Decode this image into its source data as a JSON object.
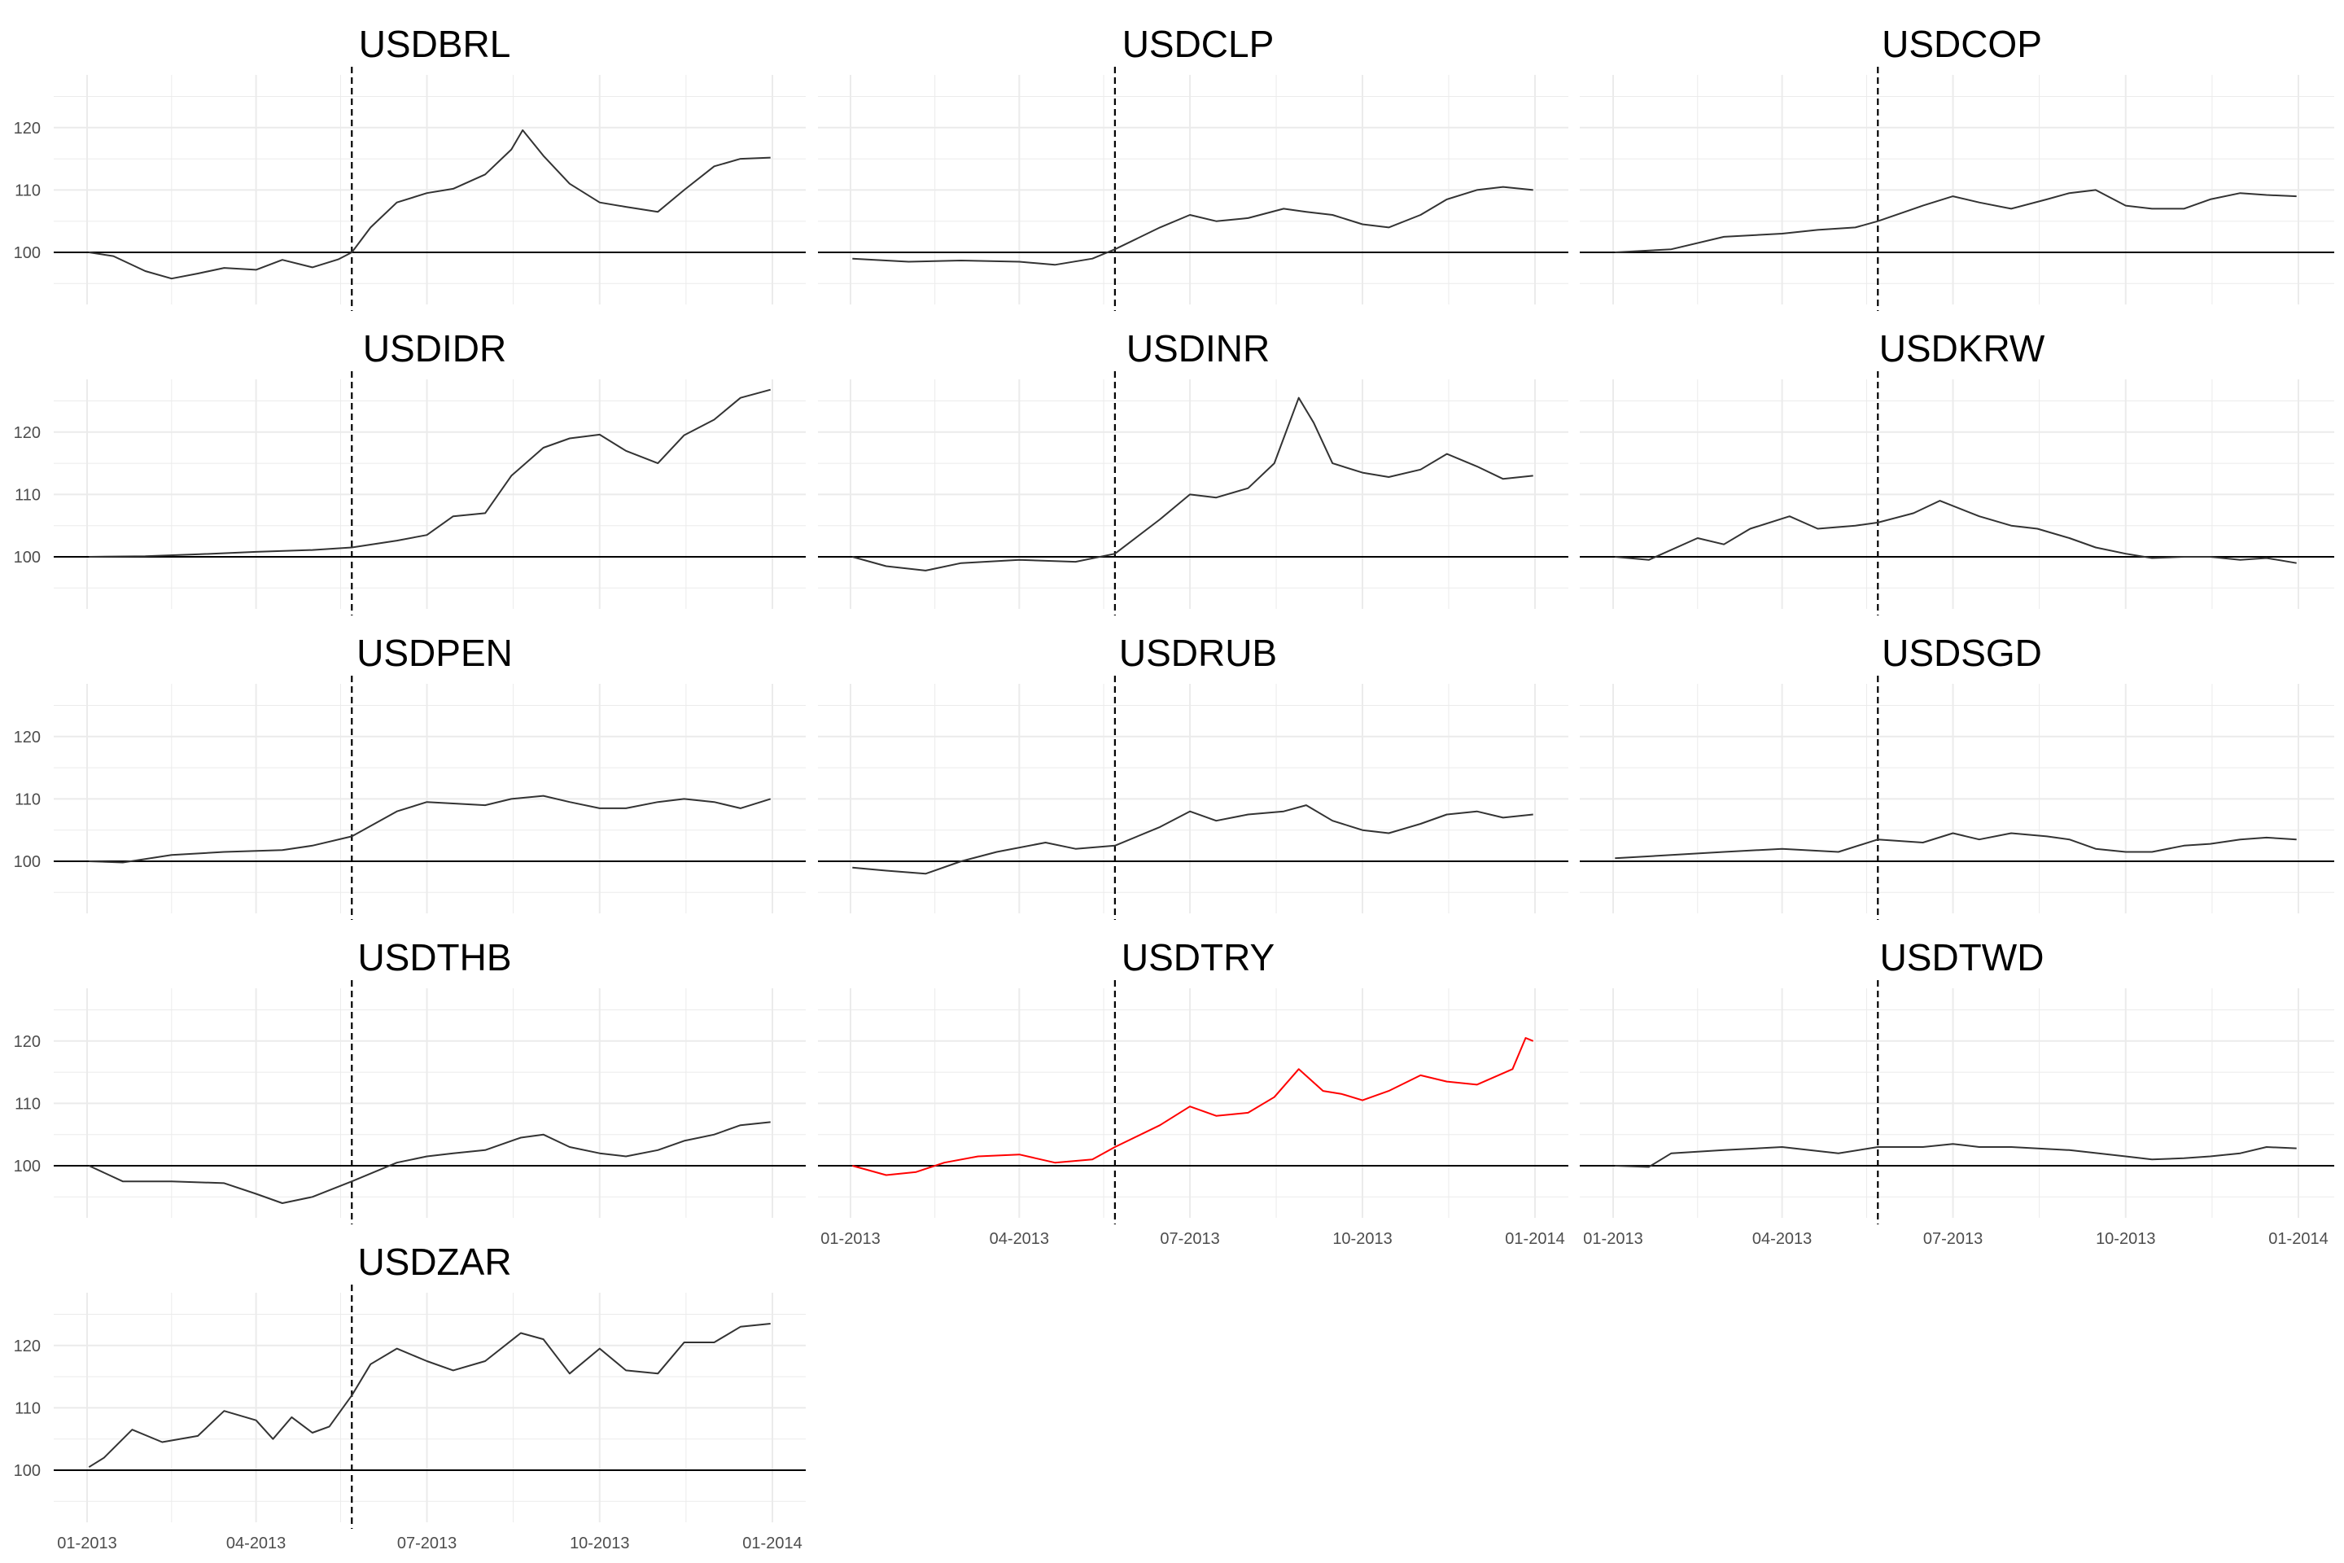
{
  "colors": {
    "default_line": "#333333",
    "highlight_line": "#ff0000",
    "grid": "#ebebeb",
    "baseline": "#000000",
    "text": "#000000",
    "tick_text": "#4d4d4d"
  },
  "chart_data": [
    {
      "type": "line",
      "title": "USDBRL",
      "ylim": [
        92,
        127
      ],
      "yticks": [
        100,
        110,
        120
      ],
      "xlim": [
        "2013-01-01",
        "2014-01-01"
      ],
      "reference_y": 100,
      "reference_date": "2013-05-22",
      "x": [
        "2013-01-02",
        "2013-01-15",
        "2013-02-01",
        "2013-02-15",
        "2013-03-01",
        "2013-03-15",
        "2013-04-01",
        "2013-04-15",
        "2013-05-01",
        "2013-05-15",
        "2013-05-22",
        "2013-06-01",
        "2013-06-15",
        "2013-07-01",
        "2013-07-15",
        "2013-08-01",
        "2013-08-15",
        "2013-08-21",
        "2013-09-01",
        "2013-09-15",
        "2013-10-01",
        "2013-10-15",
        "2013-11-01",
        "2013-11-15",
        "2013-12-01",
        "2013-12-15",
        "2013-12-31"
      ],
      "y": [
        100,
        99.4,
        97.0,
        95.8,
        96.6,
        97.5,
        97.2,
        98.8,
        97.6,
        98.9,
        100.0,
        104.0,
        108.0,
        109.5,
        110.2,
        112.5,
        116.5,
        119.6,
        115.5,
        111.0,
        108.0,
        107.3,
        106.5,
        110.0,
        113.8,
        115.0,
        115.2
      ]
    },
    {
      "type": "line",
      "title": "USDCLP",
      "ylim": [
        92,
        127
      ],
      "yticks": [
        100,
        110,
        120
      ],
      "xlim": [
        "2013-01-01",
        "2014-01-01"
      ],
      "reference_y": 100,
      "reference_date": "2013-05-22",
      "x": [
        "2013-01-02",
        "2013-02-01",
        "2013-03-01",
        "2013-04-01",
        "2013-04-20",
        "2013-05-10",
        "2013-05-22",
        "2013-06-15",
        "2013-07-01",
        "2013-07-15",
        "2013-08-01",
        "2013-08-20",
        "2013-09-01",
        "2013-09-15",
        "2013-10-01",
        "2013-10-15",
        "2013-11-01",
        "2013-11-15",
        "2013-12-01",
        "2013-12-15",
        "2013-12-31"
      ],
      "y": [
        99,
        98.5,
        98.7,
        98.5,
        98.0,
        99.0,
        100.5,
        104.0,
        106.0,
        105.0,
        105.5,
        107.0,
        106.5,
        106.0,
        104.5,
        104.0,
        106.0,
        108.5,
        110.0,
        110.5,
        110.0
      ]
    },
    {
      "type": "line",
      "title": "USDCOP",
      "ylim": [
        92,
        127
      ],
      "yticks": [
        100,
        110,
        120
      ],
      "xlim": [
        "2013-01-01",
        "2014-01-01"
      ],
      "reference_y": 100,
      "reference_date": "2013-05-22",
      "x": [
        "2013-01-02",
        "2013-02-01",
        "2013-03-01",
        "2013-04-01",
        "2013-04-20",
        "2013-05-10",
        "2013-05-22",
        "2013-06-15",
        "2013-07-01",
        "2013-07-15",
        "2013-08-01",
        "2013-08-20",
        "2013-09-01",
        "2013-09-15",
        "2013-10-01",
        "2013-10-15",
        "2013-11-01",
        "2013-11-15",
        "2013-12-01",
        "2013-12-15",
        "2013-12-31"
      ],
      "y": [
        100,
        100.5,
        102.5,
        103.0,
        103.6,
        104.0,
        105.0,
        107.5,
        109.0,
        108.0,
        107.0,
        108.5,
        109.5,
        110.0,
        107.5,
        107.0,
        107.0,
        108.5,
        109.5,
        109.2,
        109.0
      ]
    },
    {
      "type": "line",
      "title": "USDIDR",
      "ylim": [
        92,
        127
      ],
      "yticks": [
        100,
        110,
        120
      ],
      "xlim": [
        "2013-01-01",
        "2014-01-01"
      ],
      "reference_y": 100,
      "reference_date": "2013-05-22",
      "x": [
        "2013-01-02",
        "2013-02-01",
        "2013-03-01",
        "2013-04-01",
        "2013-05-01",
        "2013-05-22",
        "2013-06-15",
        "2013-07-01",
        "2013-07-15",
        "2013-08-01",
        "2013-08-15",
        "2013-09-01",
        "2013-09-15",
        "2013-10-01",
        "2013-10-15",
        "2013-11-01",
        "2013-11-15",
        "2013-12-01",
        "2013-12-15",
        "2013-12-31"
      ],
      "y": [
        100,
        100.1,
        100.4,
        100.8,
        101.1,
        101.5,
        102.6,
        103.5,
        106.5,
        107.0,
        113.0,
        117.5,
        119.0,
        119.6,
        117.0,
        115.0,
        119.5,
        122.0,
        125.5,
        126.8
      ]
    },
    {
      "type": "line",
      "title": "USDINR",
      "ylim": [
        92,
        127
      ],
      "yticks": [
        100,
        110,
        120
      ],
      "xlim": [
        "2013-01-01",
        "2014-01-01"
      ],
      "reference_y": 100,
      "reference_date": "2013-05-22",
      "x": [
        "2013-01-02",
        "2013-01-20",
        "2013-02-10",
        "2013-03-01",
        "2013-04-01",
        "2013-05-01",
        "2013-05-22",
        "2013-06-15",
        "2013-07-01",
        "2013-07-15",
        "2013-08-01",
        "2013-08-15",
        "2013-08-28",
        "2013-09-05",
        "2013-09-15",
        "2013-10-01",
        "2013-10-15",
        "2013-11-01",
        "2013-11-15",
        "2013-12-01",
        "2013-12-15",
        "2013-12-31"
      ],
      "y": [
        100,
        98.5,
        97.8,
        99.0,
        99.5,
        99.2,
        100.5,
        106.0,
        110.0,
        109.5,
        111.0,
        115.0,
        125.5,
        121.5,
        115.0,
        113.5,
        112.8,
        114.0,
        116.5,
        114.5,
        112.5,
        113.0
      ]
    },
    {
      "type": "line",
      "title": "USDKRW",
      "ylim": [
        92,
        127
      ],
      "yticks": [
        100,
        110,
        120
      ],
      "xlim": [
        "2013-01-01",
        "2014-01-01"
      ],
      "reference_y": 100,
      "reference_date": "2013-05-22",
      "x": [
        "2013-01-02",
        "2013-01-20",
        "2013-02-15",
        "2013-03-01",
        "2013-03-15",
        "2013-04-05",
        "2013-04-20",
        "2013-05-10",
        "2013-05-22",
        "2013-06-10",
        "2013-06-24",
        "2013-07-15",
        "2013-08-01",
        "2013-08-15",
        "2013-09-01",
        "2013-09-15",
        "2013-10-01",
        "2013-10-15",
        "2013-11-01",
        "2013-11-15",
        "2013-12-01",
        "2013-12-15",
        "2013-12-31"
      ],
      "y": [
        100,
        99.5,
        103.0,
        102.0,
        104.5,
        106.5,
        104.5,
        105.0,
        105.5,
        107.0,
        109.0,
        106.5,
        105.0,
        104.5,
        103.0,
        101.5,
        100.5,
        99.8,
        100.0,
        100.0,
        99.5,
        99.8,
        99.0
      ]
    },
    {
      "type": "line",
      "title": "USDPEN",
      "ylim": [
        92,
        127
      ],
      "yticks": [
        100,
        110,
        120
      ],
      "xlim": [
        "2013-01-01",
        "2014-01-01"
      ],
      "reference_y": 100,
      "reference_date": "2013-05-22",
      "x": [
        "2013-01-02",
        "2013-01-20",
        "2013-02-15",
        "2013-03-15",
        "2013-04-15",
        "2013-05-01",
        "2013-05-22",
        "2013-06-15",
        "2013-07-01",
        "2013-08-01",
        "2013-08-15",
        "2013-09-01",
        "2013-09-15",
        "2013-10-01",
        "2013-10-15",
        "2013-11-01",
        "2013-11-15",
        "2013-12-01",
        "2013-12-15",
        "2013-12-31"
      ],
      "y": [
        100,
        99.8,
        101.0,
        101.5,
        101.8,
        102.5,
        104.0,
        108.0,
        109.5,
        109.0,
        110.0,
        110.5,
        109.5,
        108.5,
        108.5,
        109.5,
        110.0,
        109.5,
        108.5,
        110.0
      ]
    },
    {
      "type": "line",
      "title": "USDRUB",
      "ylim": [
        92,
        127
      ],
      "yticks": [
        100,
        110,
        120
      ],
      "xlim": [
        "2013-01-01",
        "2014-01-01"
      ],
      "reference_y": 100,
      "reference_date": "2013-05-22",
      "x": [
        "2013-01-02",
        "2013-01-20",
        "2013-02-10",
        "2013-03-01",
        "2013-03-20",
        "2013-04-15",
        "2013-05-01",
        "2013-05-22",
        "2013-06-15",
        "2013-07-01",
        "2013-07-15",
        "2013-08-01",
        "2013-08-20",
        "2013-09-01",
        "2013-09-15",
        "2013-10-01",
        "2013-10-15",
        "2013-11-01",
        "2013-11-15",
        "2013-12-01",
        "2013-12-15",
        "2013-12-31"
      ],
      "y": [
        99,
        98.5,
        98.0,
        100.0,
        101.5,
        103.0,
        102.0,
        102.5,
        105.5,
        108.0,
        106.5,
        107.5,
        108.0,
        109.0,
        106.5,
        105.0,
        104.5,
        106.0,
        107.5,
        108.0,
        107.0,
        107.5
      ]
    },
    {
      "type": "line",
      "title": "USDSGD",
      "ylim": [
        92,
        127
      ],
      "yticks": [
        100,
        110,
        120
      ],
      "xlim": [
        "2013-01-01",
        "2014-01-01"
      ],
      "reference_y": 100,
      "reference_date": "2013-05-22",
      "x": [
        "2013-01-02",
        "2013-02-01",
        "2013-03-01",
        "2013-04-01",
        "2013-05-01",
        "2013-05-22",
        "2013-06-15",
        "2013-07-01",
        "2013-07-15",
        "2013-08-01",
        "2013-08-20",
        "2013-09-01",
        "2013-09-15",
        "2013-10-01",
        "2013-10-15",
        "2013-11-01",
        "2013-11-15",
        "2013-12-01",
        "2013-12-15",
        "2013-12-31"
      ],
      "y": [
        100.5,
        101.0,
        101.5,
        102.0,
        101.5,
        103.5,
        103.0,
        104.5,
        103.5,
        104.5,
        104.0,
        103.5,
        102.0,
        101.5,
        101.5,
        102.5,
        102.8,
        103.5,
        103.8,
        103.5
      ]
    },
    {
      "type": "line",
      "title": "USDTHB",
      "ylim": [
        92,
        127
      ],
      "yticks": [
        100,
        110,
        120
      ],
      "xlim": [
        "2013-01-01",
        "2014-01-01"
      ],
      "reference_y": 100,
      "reference_date": "2013-05-22",
      "x": [
        "2013-01-02",
        "2013-01-20",
        "2013-02-15",
        "2013-03-15",
        "2013-04-01",
        "2013-04-15",
        "2013-05-01",
        "2013-05-22",
        "2013-06-15",
        "2013-07-01",
        "2013-07-15",
        "2013-08-01",
        "2013-08-20",
        "2013-09-01",
        "2013-09-15",
        "2013-10-01",
        "2013-10-15",
        "2013-11-01",
        "2013-11-15",
        "2013-12-01",
        "2013-12-15",
        "2013-12-31"
      ],
      "y": [
        100,
        97.5,
        97.5,
        97.2,
        95.5,
        94.0,
        95.0,
        97.5,
        100.5,
        101.5,
        102.0,
        102.5,
        104.5,
        105.0,
        103.0,
        102.0,
        101.5,
        102.5,
        104.0,
        105.0,
        106.5,
        107.0
      ]
    },
    {
      "type": "line",
      "title": "USDTRY",
      "highlight": true,
      "ylim": [
        92,
        127
      ],
      "yticks": [
        100,
        110,
        120
      ],
      "xlim": [
        "2013-01-01",
        "2014-01-01"
      ],
      "reference_y": 100,
      "reference_date": "2013-05-22",
      "x": [
        "2013-01-02",
        "2013-01-20",
        "2013-02-05",
        "2013-02-20",
        "2013-03-10",
        "2013-04-01",
        "2013-04-20",
        "2013-05-10",
        "2013-05-22",
        "2013-06-15",
        "2013-07-01",
        "2013-07-15",
        "2013-08-01",
        "2013-08-15",
        "2013-08-28",
        "2013-09-10",
        "2013-09-20",
        "2013-10-01",
        "2013-10-15",
        "2013-11-01",
        "2013-11-15",
        "2013-12-01",
        "2013-12-20",
        "2013-12-27",
        "2013-12-31"
      ],
      "y": [
        100,
        98.5,
        99.0,
        100.5,
        101.5,
        101.8,
        100.5,
        101.0,
        103.0,
        106.5,
        109.5,
        108.0,
        108.5,
        111.0,
        115.5,
        112.0,
        111.5,
        110.5,
        112.0,
        114.5,
        113.5,
        113.0,
        115.5,
        120.5,
        120.0
      ]
    },
    {
      "type": "line",
      "title": "USDTWD",
      "ylim": [
        92,
        127
      ],
      "yticks": [
        100,
        110,
        120
      ],
      "xlim": [
        "2013-01-01",
        "2014-01-01"
      ],
      "reference_y": 100,
      "reference_date": "2013-05-22",
      "x": [
        "2013-01-02",
        "2013-01-20",
        "2013-02-01",
        "2013-03-01",
        "2013-04-01",
        "2013-05-01",
        "2013-05-22",
        "2013-06-15",
        "2013-07-01",
        "2013-07-15",
        "2013-08-01",
        "2013-09-01",
        "2013-10-01",
        "2013-10-15",
        "2013-11-01",
        "2013-11-15",
        "2013-12-01",
        "2013-12-15",
        "2013-12-31"
      ],
      "y": [
        100,
        99.8,
        102.0,
        102.5,
        103.0,
        102.0,
        103.0,
        103.0,
        103.5,
        103.0,
        103.0,
        102.5,
        101.5,
        101.0,
        101.2,
        101.5,
        102.0,
        103.0,
        102.8
      ]
    },
    {
      "type": "line",
      "title": "USDZAR",
      "ylim": [
        92,
        127
      ],
      "yticks": [
        100,
        110,
        120
      ],
      "xlim": [
        "2013-01-01",
        "2014-01-01"
      ],
      "reference_y": 100,
      "reference_date": "2013-05-22",
      "x": [
        "2013-01-02",
        "2013-01-10",
        "2013-01-25",
        "2013-02-10",
        "2013-03-01",
        "2013-03-15",
        "2013-04-01",
        "2013-04-10",
        "2013-04-20",
        "2013-05-01",
        "2013-05-10",
        "2013-05-22",
        "2013-06-01",
        "2013-06-15",
        "2013-07-01",
        "2013-07-15",
        "2013-08-01",
        "2013-08-20",
        "2013-09-01",
        "2013-09-15",
        "2013-10-01",
        "2013-10-15",
        "2013-11-01",
        "2013-11-15",
        "2013-12-01",
        "2013-12-15",
        "2013-12-31"
      ],
      "y": [
        100.5,
        102.0,
        106.5,
        104.5,
        105.5,
        109.5,
        108.0,
        105.0,
        108.5,
        106.0,
        107.0,
        112.0,
        117.0,
        119.5,
        117.5,
        116.0,
        117.5,
        122.0,
        121.0,
        115.5,
        119.5,
        116.0,
        115.5,
        120.5,
        120.5,
        123.0,
        123.5
      ]
    }
  ],
  "x_tick_labels": [
    "01-2013",
    "04-2013",
    "07-2013",
    "10-2013",
    "01-2014"
  ],
  "x_tick_dates": [
    "2013-01-01",
    "2013-04-01",
    "2013-07-01",
    "2013-10-01",
    "2014-01-01"
  ]
}
